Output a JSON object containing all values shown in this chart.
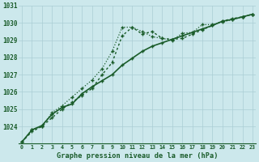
{
  "title": "Graphe pression niveau de la mer (hPa)",
  "bg_color": "#cce8ec",
  "grid_color": "#aacdd4",
  "line_color": "#1a5c2a",
  "x_values": [
    0,
    1,
    2,
    3,
    4,
    5,
    6,
    7,
    8,
    9,
    10,
    11,
    12,
    13,
    14,
    15,
    16,
    17,
    18,
    19,
    20,
    21,
    22,
    23
  ],
  "series_dotted": [
    1023.1,
    1023.7,
    1024.0,
    1024.5,
    1025.0,
    1025.4,
    1025.8,
    1026.2,
    1027.0,
    1027.7,
    1029.25,
    1029.75,
    1029.35,
    1029.5,
    1029.1,
    1029.05,
    1029.1,
    1029.35,
    1029.6,
    1029.85,
    1030.1,
    1030.25,
    1030.35,
    1030.5
  ],
  "series_high": [
    1023.1,
    1023.8,
    1024.0,
    1024.8,
    1025.2,
    1025.7,
    1026.2,
    1026.7,
    1027.35,
    1028.35,
    1029.75,
    1029.75,
    1029.5,
    1029.2,
    1029.1,
    1029.0,
    1029.4,
    1029.45,
    1029.9,
    1029.9,
    1030.05,
    1030.2,
    1030.35,
    1030.5
  ],
  "series_linear": [
    1023.1,
    1023.8,
    1024.05,
    1024.7,
    1025.1,
    1025.3,
    1025.9,
    1026.3,
    1026.65,
    1027.0,
    1027.55,
    1027.95,
    1028.35,
    1028.65,
    1028.85,
    1029.05,
    1029.25,
    1029.45,
    1029.65,
    1029.85,
    1030.1,
    1030.2,
    1030.35,
    1030.5
  ],
  "ylim_min": 1023,
  "ylim_max": 1031,
  "xlim_min": -0.3,
  "xlim_max": 23.3
}
